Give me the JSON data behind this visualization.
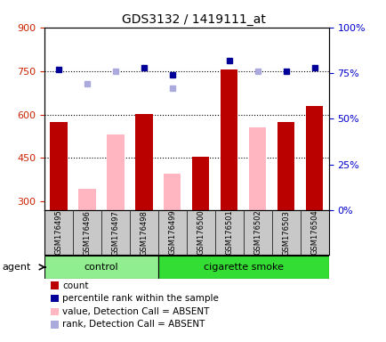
{
  "title": "GDS3132 / 1419111_at",
  "samples": [
    "GSM176495",
    "GSM176496",
    "GSM176497",
    "GSM176498",
    "GSM176499",
    "GSM176500",
    "GSM176501",
    "GSM176502",
    "GSM176503",
    "GSM176504"
  ],
  "ylim_left": [
    270,
    900
  ],
  "ylim_right": [
    0,
    100
  ],
  "yticks_left": [
    300,
    450,
    600,
    750,
    900
  ],
  "yticks_right": [
    0,
    25,
    50,
    75,
    100
  ],
  "count_values": [
    575,
    null,
    null,
    603,
    null,
    453,
    755,
    null,
    575,
    628
  ],
  "absent_value_values": [
    null,
    345,
    530,
    null,
    395,
    null,
    null,
    555,
    null,
    null
  ],
  "percentile_rank_values": [
    77,
    null,
    null,
    78,
    74,
    null,
    82,
    null,
    76,
    78
  ],
  "absent_rank_values": [
    null,
    69,
    76,
    null,
    67,
    null,
    null,
    76,
    null,
    null
  ],
  "bar_width": 0.6,
  "count_color": "#BB0000",
  "absent_value_color": "#FFB6C1",
  "percentile_rank_color": "#000099",
  "absent_rank_color": "#AAAADD",
  "control_color": "#90EE90",
  "smoke_color": "#33DD33",
  "label_bg_color": "#C8C8C8",
  "agent_text": "agent",
  "left_axis_color": "#CC2200",
  "right_axis_color": "#0000CC",
  "grid_color": "black",
  "plot_bg": "white",
  "fig_bg": "white",
  "gridline_yticks": [
    450,
    600,
    750
  ],
  "title_fontsize": 10,
  "tick_fontsize": 8,
  "legend_fontsize": 7.5,
  "sample_fontsize": 6,
  "group_fontsize": 8
}
